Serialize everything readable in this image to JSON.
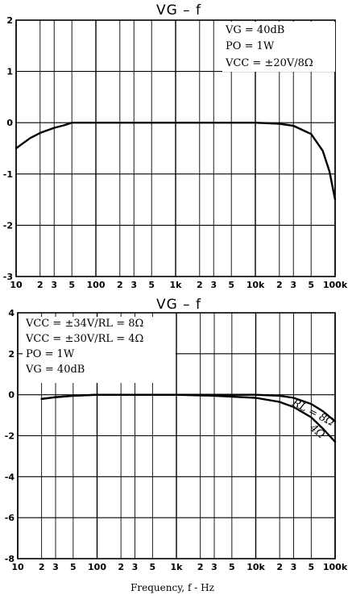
{
  "chart_data": [
    {
      "type": "line",
      "title": "VG  –  f",
      "xscale": "log",
      "xlim": [
        10,
        100000
      ],
      "ylim": [
        -3,
        2
      ],
      "yticks": [
        "2",
        "1",
        "0",
        "-1",
        "-2",
        "-3"
      ],
      "xticks": [
        "10",
        "2",
        "3",
        "5",
        "100",
        "2",
        "3",
        "5",
        "1k",
        "2",
        "3",
        "5",
        "10k",
        "2",
        "3",
        "5",
        "100k"
      ],
      "annotations": [
        "VG = 40dB",
        "PO = 1W",
        "VCC = ±20V/8Ω"
      ],
      "series": [
        {
          "x": [
            10,
            15,
            20,
            30,
            40,
            50,
            100,
            300,
            1000,
            3000,
            10000,
            20000,
            30000,
            50000,
            70000,
            85000,
            100000
          ],
          "y": [
            -0.5,
            -0.3,
            -0.2,
            -0.1,
            -0.05,
            0,
            0,
            0,
            0,
            0,
            0,
            -0.02,
            -0.06,
            -0.22,
            -0.55,
            -0.95,
            -1.5
          ]
        }
      ]
    },
    {
      "type": "line",
      "title": "VG  –  f",
      "xscale": "log",
      "xlim": [
        10,
        100000
      ],
      "ylim": [
        -8,
        4
      ],
      "yticks": [
        "4",
        "2",
        "0",
        "-2",
        "-4",
        "-6",
        "-8"
      ],
      "xticks": [
        "10",
        "2",
        "3",
        "5",
        "100",
        "2",
        "3",
        "5",
        "1k",
        "2",
        "3",
        "5",
        "10k",
        "2",
        "3",
        "5",
        "100k"
      ],
      "xlabel": "Frequency, f - Hz",
      "annotations": [
        "VCC = ±34V/RL = 8Ω",
        "VCC = ±30V/RL = 4Ω",
        "PO = 1W",
        "VG = 40dB"
      ],
      "series": [
        {
          "name": "RL = 8Ω",
          "x": [
            20,
            30,
            50,
            100,
            200,
            500,
            1000,
            3000,
            10000,
            20000,
            30000,
            50000,
            70000,
            100000
          ],
          "y": [
            -0.2,
            -0.12,
            -0.05,
            0,
            0,
            0,
            0,
            0,
            0,
            -0.05,
            -0.15,
            -0.45,
            -0.8,
            -1.3
          ]
        },
        {
          "name": "4Ω",
          "x": [
            20,
            30,
            50,
            100,
            200,
            500,
            1000,
            3000,
            10000,
            20000,
            30000,
            50000,
            70000,
            100000
          ],
          "y": [
            -0.2,
            -0.12,
            -0.05,
            0,
            0,
            0,
            0,
            -0.05,
            -0.15,
            -0.35,
            -0.6,
            -1.1,
            -1.65,
            -2.3
          ]
        }
      ]
    }
  ]
}
